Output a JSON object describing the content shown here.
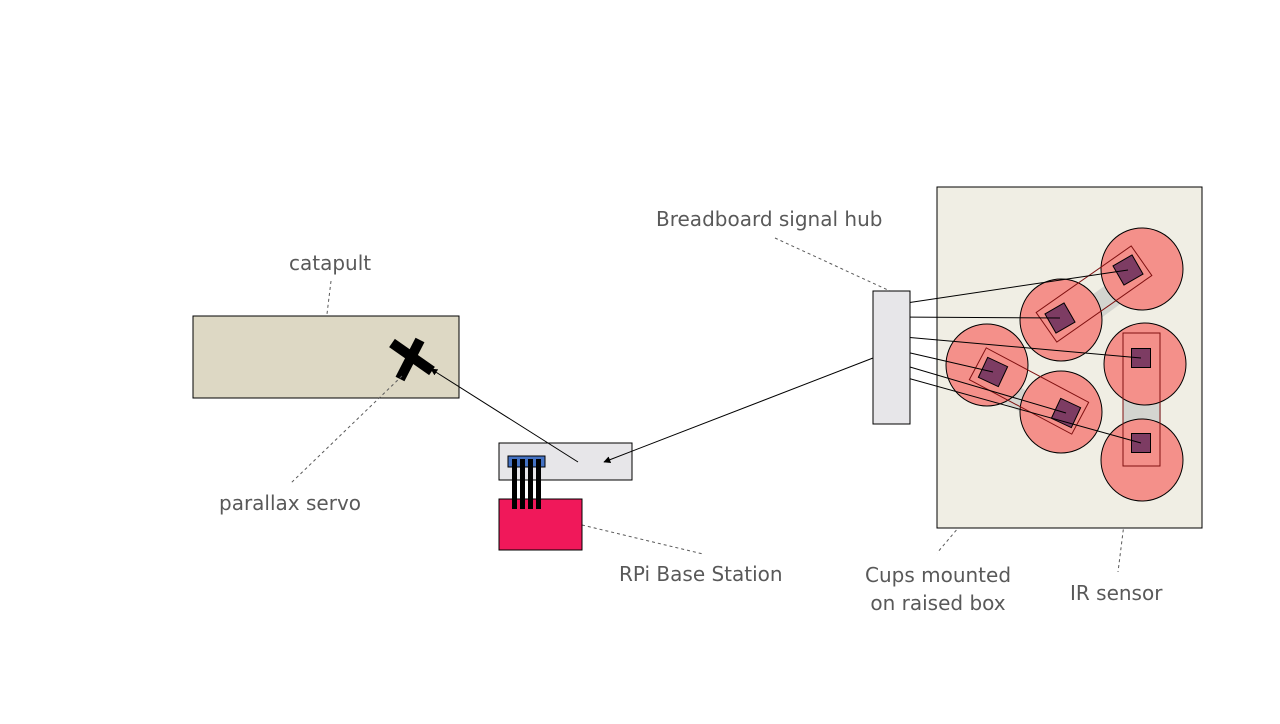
{
  "labels": {
    "catapult": "catapult",
    "parallax_servo": "parallax servo",
    "rpi_base_station": "RPi Base Station",
    "breadboard_signal_hub": "Breadboard signal hub",
    "cups_line1": "Cups mounted",
    "cups_line2": "on raised box",
    "ir_sensor": "IR sensor"
  },
  "colors": {
    "catapult_fill": "#ddd8c4",
    "raised_box_fill": "#f0eee4",
    "cup_fill": "#f4908a",
    "sensor_fill": "#7d3c63",
    "hub_fill": "#e7e6e9",
    "rpi_fill": "#f0185a",
    "connector_fill": "#4472c4",
    "label_text": "#595959"
  }
}
